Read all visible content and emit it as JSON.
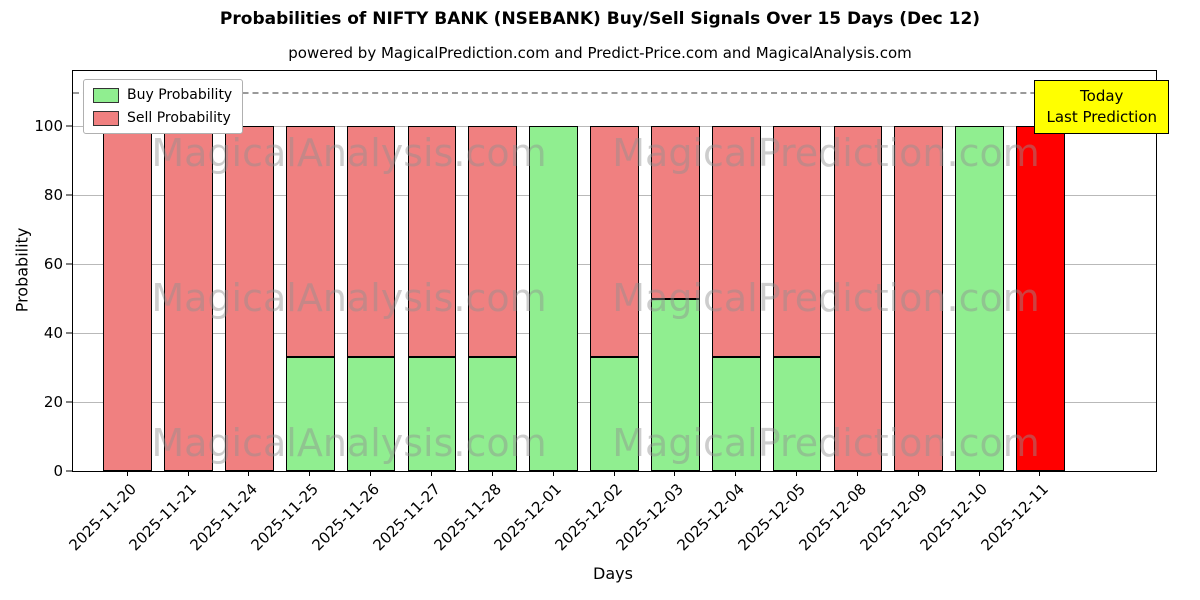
{
  "title": "Probabilities of NIFTY BANK (NSEBANK) Buy/Sell Signals Over 15 Days (Dec 12)",
  "subtitle": "powered by MagicalPrediction.com and Predict-Price.com and MagicalAnalysis.com",
  "xlabel": "Days",
  "ylabel": "Probability",
  "legend": {
    "buy": "Buy Probability",
    "sell": "Sell Probability"
  },
  "annotation": {
    "line1": "Today",
    "line2": "Last Prediction"
  },
  "watermarks": [
    "MagicalAnalysis.com",
    "MagicalPrediction.com"
  ],
  "colors": {
    "buy": "#90ee90",
    "sell": "#f08080",
    "today": "#ff0000",
    "annotation_bg": "#ffff00",
    "grid": "#b9b9b9"
  },
  "chart_data": {
    "type": "bar",
    "stacked": true,
    "title": "Probabilities of NIFTY BANK (NSEBANK) Buy/Sell Signals Over 15 Days (Dec 12)",
    "xlabel": "Days",
    "ylabel": "Probability",
    "categories": [
      "2025-11-20",
      "2025-11-21",
      "2025-11-24",
      "2025-11-25",
      "2025-11-26",
      "2025-11-27",
      "2025-11-28",
      "2025-12-01",
      "2025-12-02",
      "2025-12-03",
      "2025-12-04",
      "2025-12-05",
      "2025-12-08",
      "2025-12-09",
      "2025-12-10",
      "2025-12-11"
    ],
    "series": [
      {
        "name": "Buy Probability",
        "color": "#90ee90",
        "values": [
          0,
          0,
          0,
          33,
          33,
          33,
          33,
          100,
          33,
          50,
          33,
          33,
          0,
          0,
          100,
          0
        ]
      },
      {
        "name": "Sell Probability",
        "color": "#f08080",
        "values": [
          100,
          100,
          100,
          67,
          67,
          67,
          67,
          0,
          67,
          50,
          67,
          67,
          100,
          100,
          0,
          100
        ]
      }
    ],
    "today_index": 15,
    "yticks": [
      0,
      20,
      40,
      60,
      80,
      100
    ],
    "ylim": [
      0,
      116
    ],
    "dashed_line_y": 110,
    "grid": true,
    "legend_position": "upper-left"
  }
}
